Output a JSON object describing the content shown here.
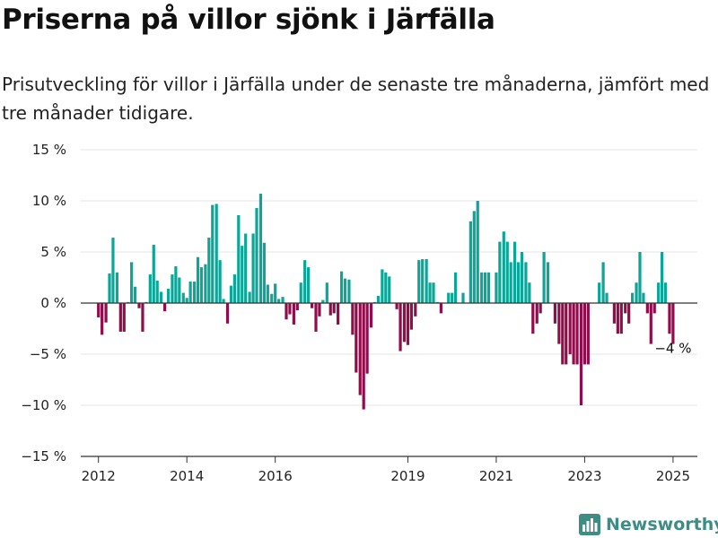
{
  "title": "Priserna på villor sjönk i Järfälla",
  "subtitle": "Prisutveckling för villor i Järfälla under de senaste tre månaderna, jämfört med tre månader tidigare.",
  "brand": {
    "name": "Newsworthy",
    "icon": "bar-chart-logo-icon",
    "color": "#3d8d85"
  },
  "colors": {
    "positive": "#0ca597",
    "negative": "#900c4b",
    "grid": "#e6e6e6",
    "axis": "#333333"
  },
  "chart_data": {
    "type": "bar",
    "title": "Priserna på villor sjönk i Järfälla",
    "xlabel": "",
    "ylabel": "",
    "ylim": [
      -15,
      15
    ],
    "yticks": [
      15,
      10,
      5,
      0,
      -5,
      -10,
      -15
    ],
    "ytick_labels": [
      "15 %",
      "10 %",
      "5 %",
      "0 %",
      "−5 %",
      "−10 %",
      "−15 %"
    ],
    "xlim": [
      2011.6,
      2025.55
    ],
    "xticks": [
      2012,
      2014,
      2016,
      2019,
      2021,
      2023,
      2025
    ],
    "xtick_labels": [
      "2012",
      "2014",
      "2016",
      "2019",
      "2021",
      "2023",
      "2025"
    ],
    "grid": true,
    "annotation": {
      "text": "−4 %",
      "x": 2025.0,
      "y": -4
    },
    "x": [
      2012.0,
      2012.08,
      2012.17,
      2012.25,
      2012.33,
      2012.42,
      2012.5,
      2012.58,
      2012.67,
      2012.75,
      2012.83,
      2012.92,
      2013.0,
      2013.08,
      2013.17,
      2013.25,
      2013.33,
      2013.42,
      2013.5,
      2013.58,
      2013.67,
      2013.75,
      2013.83,
      2013.92,
      2014.0,
      2014.08,
      2014.17,
      2014.25,
      2014.33,
      2014.42,
      2014.5,
      2014.58,
      2014.67,
      2014.75,
      2014.83,
      2014.92,
      2015.0,
      2015.08,
      2015.17,
      2015.25,
      2015.33,
      2015.42,
      2015.5,
      2015.58,
      2015.67,
      2015.75,
      2015.83,
      2015.92,
      2016.0,
      2016.08,
      2016.17,
      2016.25,
      2016.33,
      2016.42,
      2016.5,
      2016.58,
      2016.67,
      2016.75,
      2016.83,
      2016.92,
      2017.0,
      2017.08,
      2017.17,
      2017.25,
      2017.33,
      2017.42,
      2017.5,
      2017.58,
      2017.67,
      2017.75,
      2017.83,
      2017.92,
      2018.0,
      2018.08,
      2018.17,
      2018.25,
      2018.33,
      2018.42,
      2018.5,
      2018.58,
      2018.67,
      2018.75,
      2018.83,
      2018.92,
      2019.0,
      2019.08,
      2019.17,
      2019.25,
      2019.33,
      2019.42,
      2019.5,
      2019.58,
      2019.67,
      2019.75,
      2019.83,
      2019.92,
      2020.0,
      2020.08,
      2020.17,
      2020.25,
      2020.33,
      2020.42,
      2020.5,
      2020.58,
      2020.67,
      2020.75,
      2020.83,
      2020.92,
      2021.0,
      2021.08,
      2021.17,
      2021.25,
      2021.33,
      2021.42,
      2021.5,
      2021.58,
      2021.67,
      2021.75,
      2021.83,
      2021.92,
      2022.0,
      2022.08,
      2022.17,
      2022.25,
      2022.33,
      2022.42,
      2022.5,
      2022.58,
      2022.67,
      2022.75,
      2022.83,
      2022.92,
      2023.0,
      2023.08,
      2023.17,
      2023.25,
      2023.33,
      2023.42,
      2023.5,
      2023.58,
      2023.67,
      2023.75,
      2023.83,
      2023.92,
      2024.0,
      2024.08,
      2024.17,
      2024.25,
      2024.33,
      2024.42,
      2024.5,
      2024.58,
      2024.67,
      2024.75,
      2024.83,
      2024.92,
      2025.0
    ],
    "values": [
      -1.4,
      -3.1,
      -1.9,
      2.9,
      6.4,
      3.0,
      -2.8,
      -2.8,
      0.1,
      4.0,
      1.6,
      -0.5,
      -2.8,
      0.1,
      2.8,
      5.7,
      2.2,
      1.1,
      -0.8,
      1.4,
      2.8,
      3.6,
      2.5,
      1.0,
      0.5,
      2.1,
      2.1,
      4.5,
      3.5,
      3.8,
      6.4,
      9.6,
      9.7,
      4.2,
      0.4,
      -2.0,
      1.7,
      2.8,
      8.6,
      5.6,
      6.8,
      1.1,
      6.8,
      9.3,
      10.7,
      5.9,
      1.8,
      0.9,
      1.9,
      0.4,
      0.6,
      -1.6,
      -1.1,
      -2.1,
      -0.7,
      2.0,
      4.2,
      3.5,
      -0.5,
      -2.8,
      -1.3,
      0.3,
      2.0,
      -1.2,
      -1.0,
      -2.1,
      3.1,
      2.4,
      2.3,
      -3.1,
      -6.8,
      -9.0,
      -10.4,
      -6.9,
      -2.4,
      0.1,
      0.7,
      3.3,
      3.0,
      2.6,
      0.0,
      -0.6,
      -4.7,
      -3.8,
      -4.1,
      -2.6,
      -1.3,
      4.2,
      4.3,
      4.3,
      2.0,
      2.0,
      0.1,
      -1.0,
      0.0,
      1.0,
      1.0,
      3.0,
      0.0,
      1.0,
      0.0,
      8.0,
      9.0,
      10.0,
      3.0,
      3.0,
      3.0,
      0.0,
      3.0,
      6.0,
      7.0,
      6.0,
      4.0,
      6.0,
      4.0,
      5.0,
      4.0,
      2.0,
      -3.0,
      -2.0,
      -1.0,
      5.0,
      4.0,
      0.0,
      -2.0,
      -4.0,
      -6.0,
      -6.0,
      -5.0,
      -6.0,
      -6.0,
      -10.0,
      -6.0,
      -6.0,
      0.0,
      0.0,
      2.0,
      4.0,
      1.0,
      0.0,
      -2.0,
      -3.0,
      -3.0,
      -1.0,
      -2.0,
      1.0,
      2.0,
      5.0,
      1.0,
      -1.0,
      -4.0,
      -1.0,
      2.0,
      5.0,
      2.0,
      -3.0,
      -4.0
    ]
  }
}
